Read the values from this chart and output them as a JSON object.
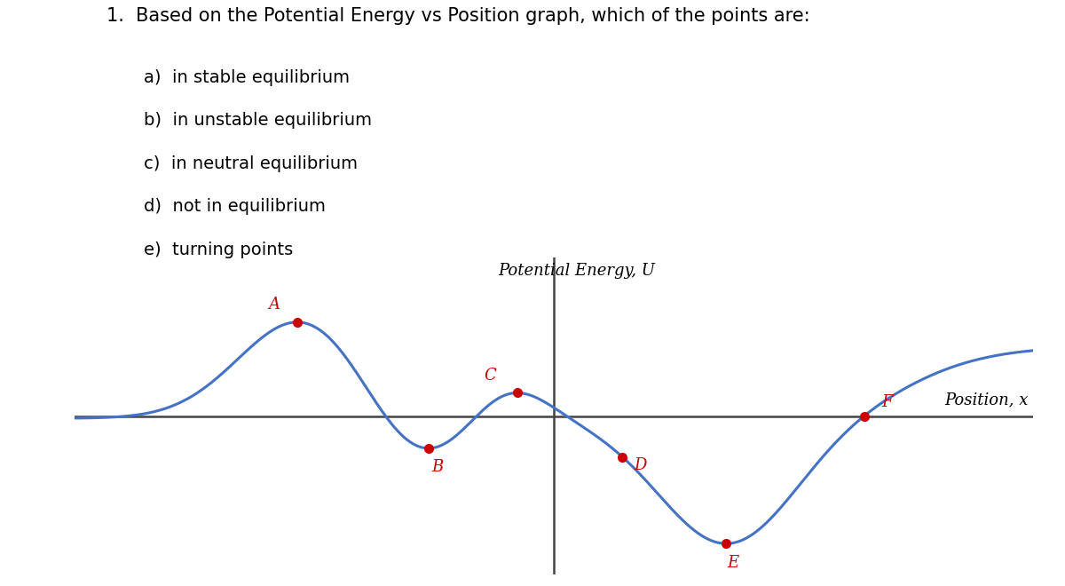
{
  "title": "1.  Based on the Potential Energy vs Position graph, which of the points are:",
  "items": [
    "a)  in stable equilibrium",
    "b)  in unstable equilibrium",
    "c)  in neutral equilibrium",
    "d)  not in equilibrium",
    "e)  turning points"
  ],
  "graph_title": "Potential Energy, U",
  "xlabel": "Position, x",
  "curve_color": "#4472C4",
  "point_color": "#CC0000",
  "axis_color": "#444444",
  "background_color": "#FFFFFF",
  "text_color": "#000000",
  "point_label_color": "#CC0000",
  "title_fontsize": 15,
  "item_fontsize": 14,
  "graph_title_fontsize": 13,
  "xlabel_fontsize": 13,
  "point_label_fontsize": 13,
  "curve_linewidth": 2.2,
  "axis_linewidth": 1.8,
  "point_size": 7,
  "xlim": [
    -10.5,
    10.5
  ],
  "ylim": [
    -3.5,
    3.5
  ],
  "x_axis_y": 0.0,
  "y_axis_x": 0.0
}
